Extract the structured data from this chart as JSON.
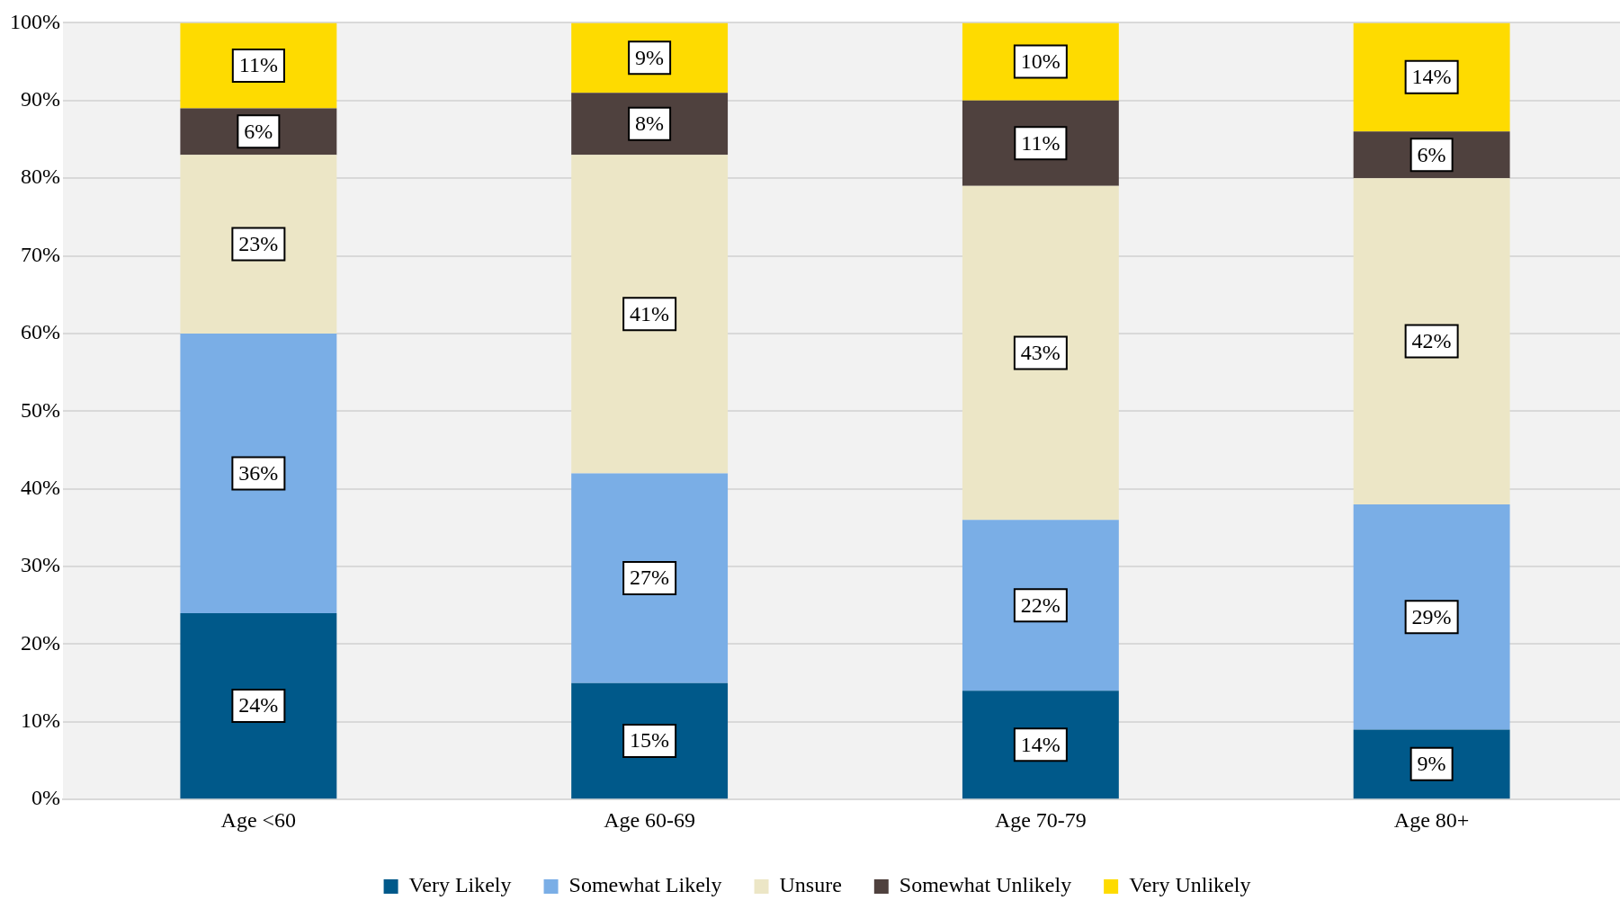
{
  "chart_data": {
    "type": "bar",
    "stacked": true,
    "categories": [
      "Age <60",
      "Age 60-69",
      "Age 70-79",
      "Age 80+"
    ],
    "series": [
      {
        "name": "Very Likely",
        "color": "#00598a",
        "values": [
          24,
          15,
          14,
          9
        ],
        "value_labels": [
          "24%",
          "15%",
          "14%",
          "9%"
        ]
      },
      {
        "name": "Somewhat Likely",
        "color": "#7aaee6",
        "values": [
          36,
          27,
          22,
          29
        ],
        "value_labels": [
          "36%",
          "27%",
          "22%",
          "29%"
        ]
      },
      {
        "name": "Unsure",
        "color": "#ece6c6",
        "values": [
          23,
          41,
          43,
          42
        ],
        "value_labels": [
          "23%",
          "41%",
          "43%",
          "42%"
        ]
      },
      {
        "name": "Somewhat Unlikely",
        "color": "#4f413e",
        "values": [
          6,
          8,
          11,
          6
        ],
        "value_labels": [
          "6%",
          "8%",
          "11%",
          "6%"
        ]
      },
      {
        "name": "Very Unlikely",
        "color": "#fedb00",
        "values": [
          11,
          9,
          10,
          14
        ],
        "value_labels": [
          "11%",
          "9%",
          "10%",
          "14%"
        ]
      }
    ],
    "ylim": [
      0,
      100
    ],
    "yticks": [
      {
        "value": 0,
        "label": "0%"
      },
      {
        "value": 10,
        "label": "10%"
      },
      {
        "value": 20,
        "label": "20%"
      },
      {
        "value": 30,
        "label": "30%"
      },
      {
        "value": 40,
        "label": "40%"
      },
      {
        "value": 50,
        "label": "50%"
      },
      {
        "value": 60,
        "label": "60%"
      },
      {
        "value": 70,
        "label": "70%"
      },
      {
        "value": 80,
        "label": "80%"
      },
      {
        "value": 90,
        "label": "90%"
      },
      {
        "value": 100,
        "label": "100%"
      }
    ],
    "grid": "y",
    "legend": "bottom"
  }
}
